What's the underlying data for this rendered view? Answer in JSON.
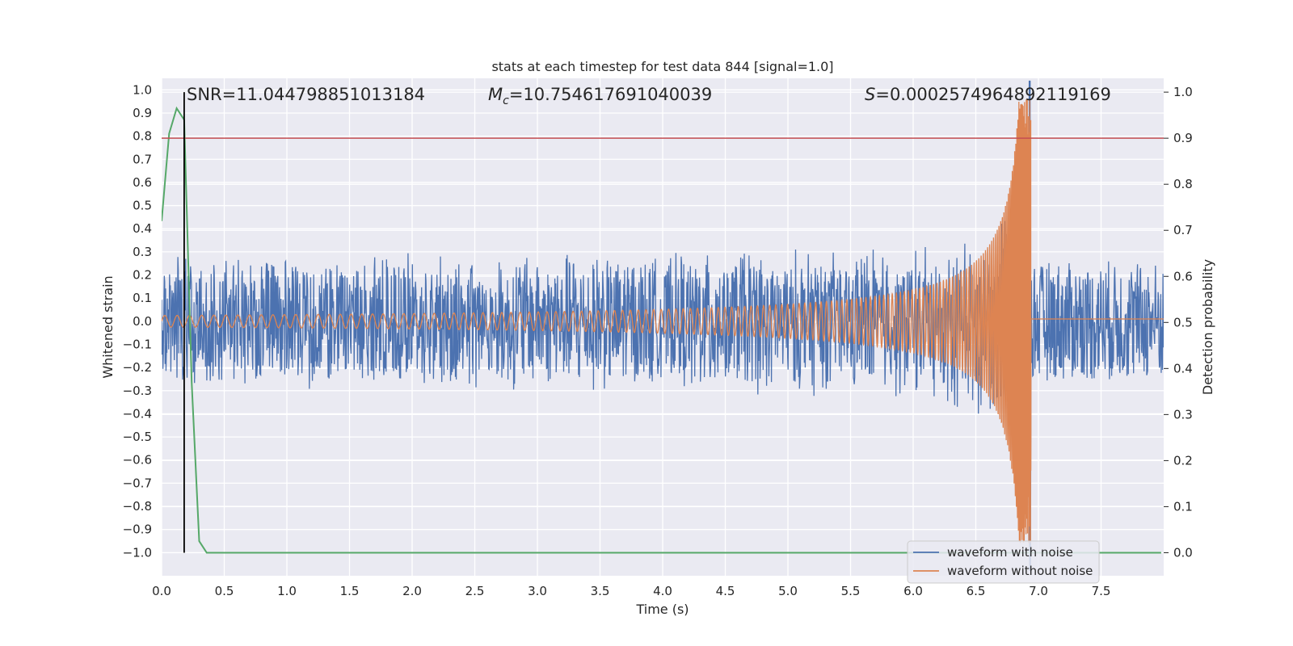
{
  "chart_data": {
    "type": "line",
    "title": "stats at each timestep for test data 844 [signal=1.0]",
    "xlabel": "Time (s)",
    "ylabel": "Whitened strain",
    "y2label": "Detection probability",
    "xlim": [
      0.0,
      8.0
    ],
    "ylim": [
      -1.1,
      1.05
    ],
    "y2lim": [
      -0.05,
      1.03
    ],
    "x_ticks": [
      "0.0",
      "0.5",
      "1.0",
      "1.5",
      "2.0",
      "2.5",
      "3.0",
      "3.5",
      "4.0",
      "4.5",
      "5.0",
      "5.5",
      "6.0",
      "6.5",
      "7.0",
      "7.5"
    ],
    "y_ticks": [
      "1.0",
      "0.9",
      "0.8",
      "0.7",
      "0.6",
      "0.5",
      "0.4",
      "0.3",
      "0.2",
      "0.1",
      "0.0",
      "−0.1",
      "−0.2",
      "−0.3",
      "−0.4",
      "−0.5",
      "−0.6",
      "−0.7",
      "−0.8",
      "−0.9",
      "−1.0"
    ],
    "y2_ticks": [
      "1.0",
      "0.9",
      "0.8",
      "0.7",
      "0.6",
      "0.5",
      "0.4",
      "0.3",
      "0.2",
      "0.1",
      "0.0"
    ],
    "grid": true,
    "legend_position": "lower-right",
    "annotations": {
      "snr": "SNR=11.044798851013184",
      "mc_symbol": "M",
      "mc_sub": "c",
      "mc_value": "=10.754617691040039",
      "s_symbol": "S",
      "s_value": "=0.0002574964892119169"
    },
    "series": [
      {
        "name": "waveform with noise",
        "color": "#4c72b0",
        "axis": "left",
        "noise_amplitude": 0.27,
        "peak_time": 6.94
      },
      {
        "name": "waveform without noise",
        "color": "#dd8452",
        "axis": "left",
        "start_amplitude": 0.025,
        "peak_time": 6.94
      }
    ],
    "detection_probability": {
      "color": "#55a868",
      "axis": "right",
      "x": [
        0.0,
        0.06,
        0.12,
        0.18,
        0.24,
        0.3,
        0.36,
        7.98
      ],
      "y": [
        0.72,
        0.91,
        0.965,
        0.94,
        0.37,
        0.025,
        0.0,
        0.0
      ]
    },
    "threshold": {
      "value": 0.9,
      "axis": "right",
      "color": "#c44e52"
    },
    "marker_time": 0.18,
    "marker_color": "#000000"
  }
}
